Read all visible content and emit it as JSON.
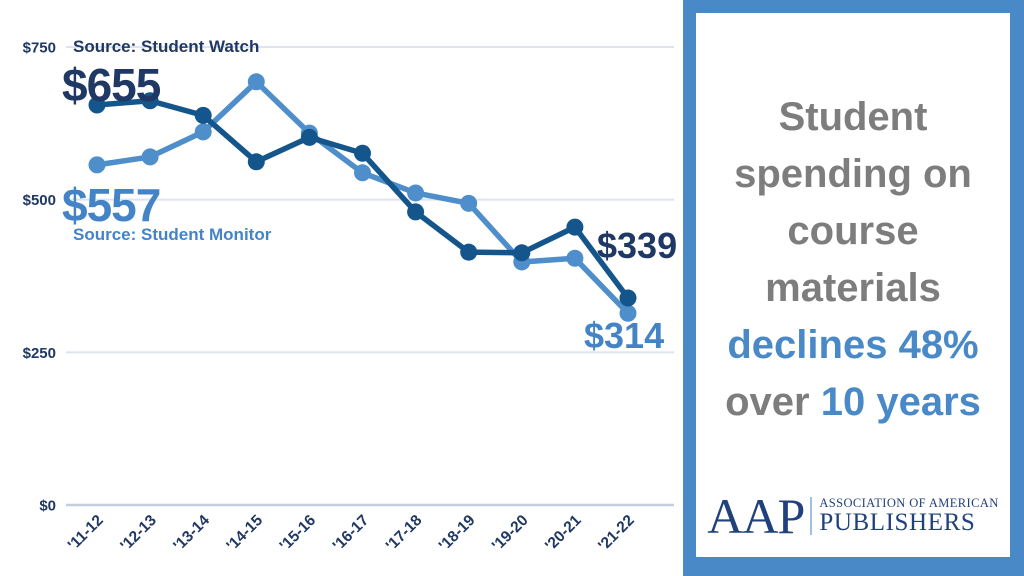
{
  "colors": {
    "accent": "#4a89c8",
    "gray": "#7d7d7d",
    "navy": "#1f3864",
    "light-text": "#4484c6",
    "grid": "#dde4ee",
    "axis": "#c3cedd",
    "logo-navy": "#21417c",
    "watch-line": "#14568c",
    "monitor-line": "#4d8ecb"
  },
  "chart_data": {
    "type": "line",
    "title": "Student spending on course materials declines 48% over 10 years",
    "categories": [
      "'11-12",
      "'12-13",
      "'13-14",
      "'14-15",
      "'15-16",
      "'16-17",
      "'17-18",
      "'18-19",
      "'19-20",
      "'20-21",
      "'21-22"
    ],
    "series": [
      {
        "name": "Student Watch",
        "source_label": "Source: Student Watch",
        "color": "#14568c",
        "values": [
          655,
          662,
          638,
          562,
          602,
          576,
          480,
          414,
          413,
          455,
          339
        ],
        "first_value_label": "$655",
        "last_value_label": "$339"
      },
      {
        "name": "Student Monitor",
        "source_label": "Source: Student Monitor",
        "color": "#4d8ecb",
        "values": [
          557,
          570,
          611,
          693,
          609,
          544,
          511,
          494,
          398,
          404,
          314
        ],
        "first_value_label": "$557",
        "last_value_label": "$314"
      }
    ],
    "y_axis_ticks": [
      {
        "label": "$750",
        "value": 750
      },
      {
        "label": "$500",
        "value": 500
      },
      {
        "label": "$250",
        "value": 250
      },
      {
        "label": "$0",
        "value": 0
      }
    ],
    "ylim": [
      0,
      750
    ],
    "grid": true,
    "legend_position": "none"
  },
  "annotations": {
    "watch_source": "Source: Student Watch",
    "watch_start": "$655",
    "watch_end": "$339",
    "monitor_start": "$557",
    "monitor_source": "Source: Student Monitor",
    "monitor_end": "$314"
  },
  "panel": {
    "headline_lines": [
      {
        "segments": [
          {
            "text": "Student",
            "style": "gray"
          }
        ]
      },
      {
        "segments": [
          {
            "text": "spending on",
            "style": "gray"
          }
        ]
      },
      {
        "segments": [
          {
            "text": "course",
            "style": "gray"
          }
        ]
      },
      {
        "segments": [
          {
            "text": "materials",
            "style": "gray"
          }
        ]
      },
      {
        "segments": [
          {
            "text": "declines 48%",
            "style": "blue"
          }
        ]
      },
      {
        "segments": [
          {
            "text": "over ",
            "style": "gray"
          },
          {
            "text": "10 years",
            "style": "blue"
          }
        ]
      }
    ]
  },
  "logo": {
    "acronym": "AAP",
    "name_line1": "ASSOCIATION OF AMERICAN",
    "name_line2": "PUBLISHERS"
  }
}
